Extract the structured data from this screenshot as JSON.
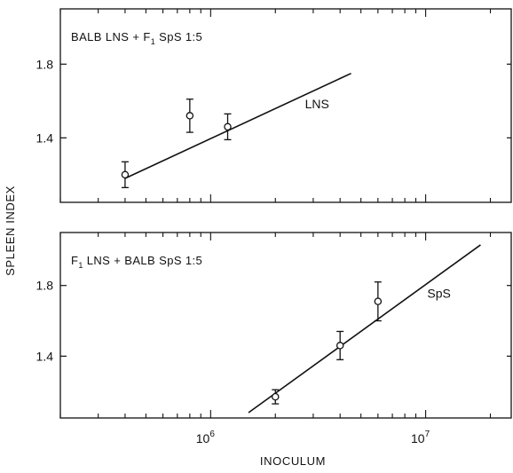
{
  "figure": {
    "ylabel": "SPLEEN INDEX",
    "xlabel": "INOCULUM"
  },
  "chart_data": [
    {
      "type": "scatter",
      "panel": "top",
      "title": "BALB LNS + F1 SpS 1:5",
      "title_parts": {
        "pre": "BALB LNS + F",
        "sub": "1",
        "post": " SpS 1:5"
      },
      "x_scale": "log",
      "xlim": [
        200000,
        25000000
      ],
      "ylim": [
        1.05,
        2.1
      ],
      "yticks": [
        1.4,
        1.8
      ],
      "ytick_labels": [
        "1.4",
        "1.8"
      ],
      "series": [
        {
          "name": "LNS",
          "points": [
            {
              "x": 400000,
              "y": 1.2,
              "err": 0.07
            },
            {
              "x": 800000,
              "y": 1.52,
              "err": 0.09
            },
            {
              "x": 1200000,
              "y": 1.46,
              "err": 0.07
            }
          ],
          "fit_line": [
            [
              400000,
              1.18
            ],
            [
              4500000,
              1.75
            ]
          ]
        }
      ],
      "grid": false
    },
    {
      "type": "scatter",
      "panel": "bottom",
      "title": "F1 LNS + BALB SpS 1:5",
      "title_parts": {
        "pre": "F",
        "sub": "1",
        "post": " LNS + BALB SpS 1:5"
      },
      "x_scale": "log",
      "xlim": [
        200000,
        25000000
      ],
      "ylim": [
        1.05,
        2.1
      ],
      "yticks": [
        1.4,
        1.8
      ],
      "ytick_labels": [
        "1.4",
        "1.8"
      ],
      "xticks": [
        1000000,
        10000000
      ],
      "xtick_labels": [
        {
          "base": "10",
          "exp": "6"
        },
        {
          "base": "10",
          "exp": "7"
        }
      ],
      "series": [
        {
          "name": "SpS",
          "points": [
            {
              "x": 2000000,
              "y": 1.17,
              "err": 0.04
            },
            {
              "x": 4000000,
              "y": 1.46,
              "err": 0.08
            },
            {
              "x": 6000000,
              "y": 1.71,
              "err": 0.11
            }
          ],
          "fit_line": [
            [
              1500000,
              1.08
            ],
            [
              18000000,
              2.03
            ]
          ]
        }
      ],
      "grid": false
    }
  ]
}
